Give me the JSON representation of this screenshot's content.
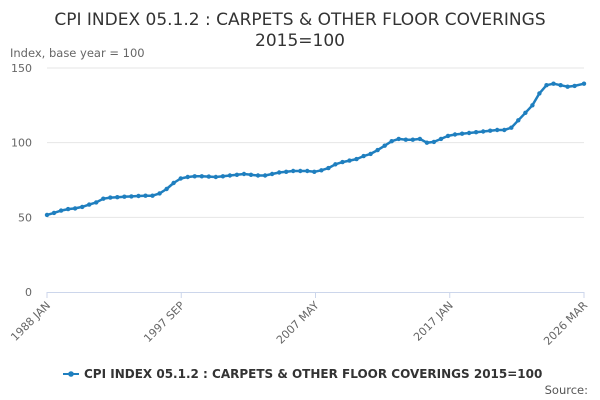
{
  "chart_data": {
    "type": "line",
    "title_line1": "CPI INDEX 05.1.2 : CARPETS & OTHER FLOOR COVERINGS",
    "title_line2": "2015=100",
    "ylabel": "Index, base year = 100",
    "ylim": [
      0,
      150
    ],
    "yticks": [
      0,
      50,
      100,
      150
    ],
    "grid": true,
    "legend_position": "bottom",
    "xtick_labels": [
      "1988 JAN",
      "1997 SEP",
      "2007 MAY",
      "2017 JAN",
      "2026 MAR"
    ],
    "xrange": [
      "1988-01",
      "2026-03"
    ],
    "series": [
      {
        "name": "CPI INDEX 05.1.2 : CARPETS & OTHER FLOOR COVERINGS 2015=100",
        "color": "#1f7fbf",
        "points": [
          [
            "1988-01",
            51.6
          ],
          [
            "1988-07",
            53.0
          ],
          [
            "1989-01",
            54.5
          ],
          [
            "1989-07",
            55.5
          ],
          [
            "1990-01",
            56.0
          ],
          [
            "1990-07",
            57.0
          ],
          [
            "1991-01",
            58.5
          ],
          [
            "1991-07",
            60.0
          ],
          [
            "1992-01",
            62.5
          ],
          [
            "1992-07",
            63.2
          ],
          [
            "1993-01",
            63.5
          ],
          [
            "1993-07",
            63.8
          ],
          [
            "1994-01",
            64.0
          ],
          [
            "1994-07",
            64.3
          ],
          [
            "1995-01",
            64.5
          ],
          [
            "1995-07",
            64.5
          ],
          [
            "1996-01",
            66.0
          ],
          [
            "1996-07",
            69.0
          ],
          [
            "1997-01",
            73.0
          ],
          [
            "1997-07",
            76.0
          ],
          [
            "1998-01",
            77.0
          ],
          [
            "1998-07",
            77.5
          ],
          [
            "1999-01",
            77.5
          ],
          [
            "1999-07",
            77.3
          ],
          [
            "2000-01",
            77.0
          ],
          [
            "2000-07",
            77.5
          ],
          [
            "2001-01",
            78.0
          ],
          [
            "2001-07",
            78.5
          ],
          [
            "2002-01",
            79.0
          ],
          [
            "2002-07",
            78.5
          ],
          [
            "2003-01",
            78.0
          ],
          [
            "2003-07",
            78.0
          ],
          [
            "2004-01",
            79.0
          ],
          [
            "2004-07",
            80.0
          ],
          [
            "2005-01",
            80.5
          ],
          [
            "2005-07",
            81.0
          ],
          [
            "2006-01",
            81.0
          ],
          [
            "2006-07",
            81.0
          ],
          [
            "2007-01",
            80.5
          ],
          [
            "2007-07",
            81.5
          ],
          [
            "2008-01",
            83.0
          ],
          [
            "2008-07",
            85.5
          ],
          [
            "2009-01",
            87.0
          ],
          [
            "2009-07",
            88.0
          ],
          [
            "2010-01",
            89.0
          ],
          [
            "2010-07",
            91.0
          ],
          [
            "2011-01",
            92.5
          ],
          [
            "2011-07",
            95.0
          ],
          [
            "2012-01",
            98.0
          ],
          [
            "2012-07",
            101.0
          ],
          [
            "2013-01",
            102.5
          ],
          [
            "2013-07",
            102.0
          ],
          [
            "2014-01",
            102.0
          ],
          [
            "2014-07",
            102.5
          ],
          [
            "2015-01",
            100.0
          ],
          [
            "2015-07",
            100.5
          ],
          [
            "2016-01",
            102.5
          ],
          [
            "2016-07",
            104.5
          ],
          [
            "2017-01",
            105.5
          ],
          [
            "2017-07",
            106.0
          ],
          [
            "2018-01",
            106.5
          ],
          [
            "2018-07",
            107.0
          ],
          [
            "2019-01",
            107.5
          ],
          [
            "2019-07",
            108.0
          ],
          [
            "2020-01",
            108.5
          ],
          [
            "2020-07",
            108.5
          ],
          [
            "2021-01",
            110.0
          ],
          [
            "2021-07",
            115.0
          ],
          [
            "2022-01",
            120.0
          ],
          [
            "2022-07",
            125.0
          ],
          [
            "2023-01",
            133.0
          ],
          [
            "2023-07",
            138.5
          ],
          [
            "2024-01",
            139.5
          ],
          [
            "2024-07",
            138.5
          ],
          [
            "2025-01",
            137.5
          ],
          [
            "2025-07",
            138.0
          ],
          [
            "2026-03",
            139.5
          ]
        ]
      }
    ]
  },
  "source_label": "Source:"
}
